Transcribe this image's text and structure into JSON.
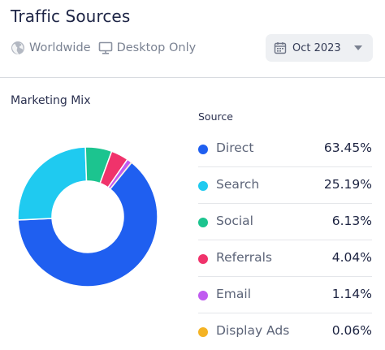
{
  "header": {
    "title": "Traffic Sources",
    "filters": [
      {
        "label": "Worldwide",
        "icon": "globe-icon"
      },
      {
        "label": "Desktop Only",
        "icon": "monitor-icon"
      }
    ],
    "date": {
      "label": "Oct 2023",
      "icon": "calendar-icon"
    }
  },
  "section": {
    "title": "Marketing Mix",
    "legend_header": "Source"
  },
  "chart_data": {
    "type": "pie",
    "title": "Marketing Mix",
    "categories": [
      "Direct",
      "Search",
      "Social",
      "Referrals",
      "Email",
      "Display Ads"
    ],
    "values": [
      63.45,
      25.19,
      6.13,
      4.04,
      1.14,
      0.06
    ],
    "value_labels": [
      "63.45%",
      "25.19%",
      "6.13%",
      "4.04%",
      "1.14%",
      "0.06%"
    ],
    "colors": [
      "#1f5ff0",
      "#1fcaf0",
      "#1cc48f",
      "#f0336b",
      "#c05bf0",
      "#f4b324"
    ],
    "legend_position": "right",
    "donut": true
  }
}
